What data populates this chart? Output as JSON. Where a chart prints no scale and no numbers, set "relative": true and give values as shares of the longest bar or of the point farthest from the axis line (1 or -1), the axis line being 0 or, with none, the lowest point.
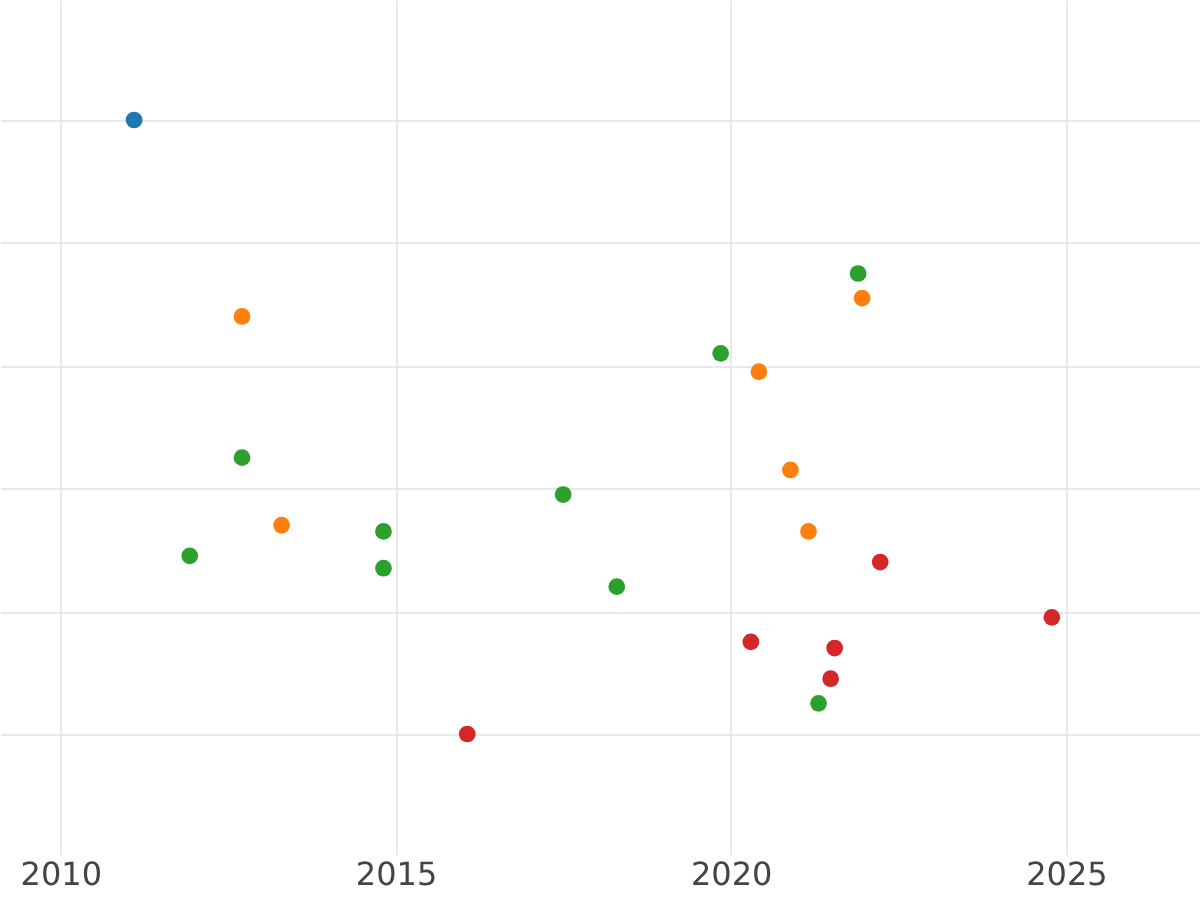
{
  "chart_data": {
    "type": "scatter",
    "relative": true,
    "xlim": [
      2009.1,
      2027
    ],
    "xticks": [
      2010,
      2015,
      2020,
      2025
    ],
    "grid": true,
    "marker": "circle",
    "series": [
      {
        "color": "#1f77b4",
        "x": [
          2011.1
        ],
        "values": [
          1
        ]
      },
      {
        "color": "#ff7f0e",
        "x": [
          2012.71,
          2013.3,
          2020.42,
          2020.89,
          2021.16,
          2021.96
        ],
        "values": [
          0.68,
          0.34,
          0.59,
          0.43,
          0.33,
          0.71
        ]
      },
      {
        "color": "#2ca02c",
        "x": [
          2021.9,
          2019.85,
          2012.71,
          2017.5,
          2011.93,
          2014.82,
          2014.82,
          2018.3,
          2021.31
        ],
        "values": [
          0.75,
          0.62,
          0.45,
          0.39,
          0.29,
          0.33,
          0.27,
          0.24,
          0.05
        ]
      },
      {
        "color": "#d62728",
        "x": [
          2022.23,
          2024.79,
          2020.3,
          2021.55,
          2021.49,
          2016.07
        ],
        "values": [
          0.28,
          0.19,
          0.15,
          0.14,
          0.09,
          0
        ]
      }
    ]
  }
}
